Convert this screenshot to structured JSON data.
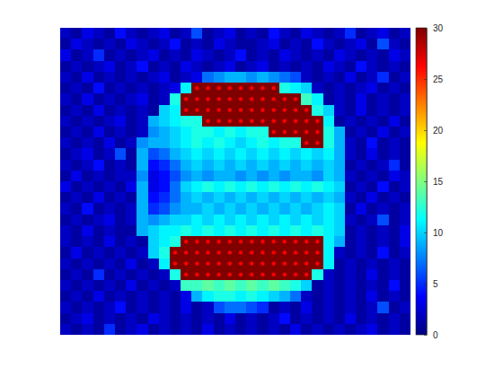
{
  "chart_data": {
    "type": "heatmap",
    "tick_labels": false,
    "xlim": [
      0.5,
      32.5
    ],
    "ylim": [
      0.5,
      28.5
    ],
    "x": [
      1,
      2,
      3,
      4,
      5,
      6,
      7,
      8,
      9,
      10,
      11,
      12,
      13,
      14,
      15,
      16,
      17,
      18,
      19,
      20,
      21,
      22,
      23,
      24,
      25,
      26,
      27,
      28,
      29,
      30,
      31,
      32
    ],
    "y": [
      1,
      2,
      3,
      4,
      5,
      6,
      7,
      8,
      9,
      10,
      11,
      12,
      13,
      14,
      15,
      16,
      17,
      18,
      19,
      20,
      21,
      22,
      23,
      24,
      25,
      26,
      27,
      28
    ],
    "z": [
      [
        2,
        1,
        3,
        2,
        1,
        4,
        2,
        1,
        2,
        3,
        1,
        2,
        6,
        1,
        2,
        3,
        1,
        2,
        1,
        4,
        2,
        1,
        3,
        2,
        1,
        2,
        5,
        1,
        2,
        3,
        1,
        2
      ],
      [
        1,
        3,
        2,
        1,
        2,
        1,
        3,
        2,
        1,
        2,
        4,
        1,
        2,
        1,
        3,
        2,
        1,
        1,
        2,
        3,
        1,
        2,
        1,
        4,
        2,
        1,
        2,
        3,
        1,
        6,
        2,
        1
      ],
      [
        3,
        1,
        2,
        5,
        1,
        2,
        1,
        2,
        3,
        1,
        2,
        1,
        3,
        2,
        1,
        2,
        4,
        1,
        2,
        1,
        3,
        2,
        1,
        2,
        1,
        3,
        2,
        1,
        2,
        1,
        3,
        2
      ],
      [
        1,
        2,
        1,
        2,
        3,
        1,
        2,
        4,
        1,
        2,
        1,
        3,
        2,
        1,
        2,
        3,
        1,
        2,
        3,
        1,
        2,
        1,
        2,
        1,
        3,
        2,
        1,
        4,
        2,
        1,
        2,
        1
      ],
      [
        2,
        1,
        3,
        1,
        2,
        1,
        2,
        1,
        2,
        3,
        1,
        2,
        3,
        7,
        8,
        9,
        9,
        8,
        9,
        8,
        7,
        6,
        2,
        1,
        2,
        1,
        3,
        1,
        2,
        5,
        1,
        2
      ],
      [
        1,
        2,
        1,
        4,
        1,
        2,
        1,
        2,
        1,
        2,
        3,
        11,
        30,
        30,
        30,
        30,
        30,
        30,
        30,
        30,
        12,
        11,
        10,
        2,
        1,
        2,
        1,
        2,
        3,
        1,
        2,
        1
      ],
      [
        2,
        1,
        3,
        1,
        2,
        1,
        2,
        3,
        1,
        2,
        12,
        30,
        30,
        30,
        30,
        30,
        30,
        30,
        30,
        30,
        30,
        30,
        13,
        11,
        1,
        2,
        1,
        3,
        1,
        2,
        1,
        2
      ],
      [
        1,
        2,
        1,
        3,
        1,
        2,
        1,
        2,
        1,
        10,
        11,
        30,
        30,
        30,
        30,
        30,
        30,
        30,
        30,
        30,
        30,
        30,
        30,
        12,
        10,
        2,
        1,
        3,
        1,
        2,
        1,
        2
      ],
      [
        2,
        1,
        2,
        1,
        2,
        3,
        1,
        2,
        9,
        10,
        11,
        12,
        12,
        30,
        30,
        30,
        30,
        30,
        30,
        30,
        30,
        30,
        30,
        30,
        11,
        1,
        2,
        1,
        2,
        1,
        3,
        1
      ],
      [
        1,
        2,
        1,
        3,
        1,
        2,
        1,
        2,
        8,
        9,
        10,
        11,
        12,
        12,
        11,
        12,
        11,
        12,
        12,
        30,
        30,
        30,
        30,
        30,
        12,
        9,
        1,
        2,
        1,
        3,
        1,
        2
      ],
      [
        2,
        1,
        2,
        1,
        3,
        1,
        2,
        8,
        9,
        9,
        10,
        11,
        12,
        11,
        12,
        11,
        10,
        11,
        12,
        11,
        12,
        12,
        30,
        30,
        12,
        9,
        2,
        1,
        4,
        1,
        2,
        1
      ],
      [
        1,
        2,
        3,
        1,
        2,
        6,
        1,
        9,
        6,
        7,
        9,
        10,
        11,
        10,
        11,
        10,
        11,
        10,
        11,
        10,
        11,
        10,
        11,
        10,
        11,
        9,
        2,
        1,
        3,
        1,
        2,
        1
      ],
      [
        2,
        1,
        2,
        4,
        1,
        2,
        1,
        9,
        4,
        5,
        7,
        9,
        10,
        9,
        10,
        9,
        10,
        9,
        10,
        9,
        10,
        9,
        10,
        9,
        10,
        9,
        1,
        2,
        1,
        2,
        5,
        1
      ],
      [
        1,
        3,
        1,
        2,
        1,
        2,
        2,
        8,
        3,
        4,
        6,
        8,
        9,
        8,
        9,
        9,
        8,
        9,
        8,
        9,
        8,
        9,
        9,
        8,
        10,
        9,
        2,
        1,
        2,
        1,
        3,
        2
      ],
      [
        3,
        1,
        2,
        1,
        2,
        1,
        3,
        9,
        3,
        4,
        7,
        10,
        11,
        12,
        11,
        12,
        11,
        12,
        11,
        12,
        11,
        12,
        11,
        12,
        11,
        10,
        1,
        2,
        1,
        4,
        1,
        2
      ],
      [
        1,
        2,
        1,
        3,
        1,
        2,
        1,
        9,
        4,
        5,
        7,
        9,
        10,
        9,
        10,
        9,
        10,
        9,
        10,
        9,
        10,
        9,
        10,
        9,
        10,
        9,
        2,
        1,
        3,
        1,
        2,
        1
      ],
      [
        2,
        1,
        4,
        1,
        2,
        1,
        2,
        9,
        5,
        6,
        8,
        9,
        9,
        10,
        9,
        10,
        9,
        10,
        9,
        10,
        9,
        10,
        9,
        10,
        11,
        10,
        1,
        3,
        1,
        2,
        1,
        2
      ],
      [
        1,
        2,
        1,
        2,
        3,
        1,
        2,
        9,
        8,
        9,
        10,
        10,
        11,
        10,
        11,
        10,
        11,
        10,
        11,
        10,
        11,
        10,
        11,
        10,
        11,
        10,
        2,
        1,
        2,
        6,
        1,
        2
      ],
      [
        2,
        1,
        3,
        1,
        2,
        1,
        1,
        9,
        10,
        11,
        11,
        12,
        11,
        12,
        11,
        12,
        11,
        12,
        11,
        12,
        11,
        12,
        11,
        12,
        11,
        10,
        1,
        2,
        1,
        2,
        1,
        3
      ],
      [
        2,
        1,
        2,
        1,
        3,
        1,
        2,
        1,
        10,
        11,
        12,
        30,
        30,
        30,
        30,
        30,
        30,
        30,
        30,
        30,
        30,
        30,
        30,
        30,
        11,
        9,
        1,
        2,
        1,
        2,
        1,
        3
      ],
      [
        1,
        3,
        1,
        2,
        1,
        2,
        1,
        2,
        10,
        12,
        30,
        30,
        30,
        30,
        30,
        30,
        30,
        30,
        30,
        30,
        30,
        30,
        30,
        30,
        11,
        2,
        1,
        2,
        1,
        4,
        1,
        2
      ],
      [
        2,
        1,
        2,
        1,
        2,
        1,
        3,
        1,
        2,
        11,
        30,
        30,
        30,
        30,
        30,
        30,
        30,
        30,
        30,
        30,
        30,
        30,
        30,
        30,
        11,
        1,
        2,
        1,
        2,
        1,
        2,
        1
      ],
      [
        1,
        2,
        1,
        5,
        1,
        2,
        1,
        2,
        1,
        2,
        12,
        30,
        30,
        30,
        30,
        30,
        30,
        30,
        30,
        30,
        30,
        30,
        30,
        12,
        2,
        1,
        2,
        1,
        3,
        1,
        2,
        1
      ],
      [
        2,
        1,
        2,
        1,
        2,
        1,
        3,
        1,
        2,
        1,
        2,
        13,
        13,
        14,
        13,
        14,
        13,
        14,
        13,
        14,
        13,
        12,
        10,
        1,
        2,
        1,
        2,
        1,
        2,
        1,
        4,
        1
      ],
      [
        1,
        2,
        1,
        3,
        1,
        2,
        1,
        2,
        1,
        2,
        1,
        3,
        9,
        11,
        12,
        12,
        11,
        12,
        11,
        10,
        9,
        7,
        2,
        1,
        2,
        1,
        2,
        1,
        3,
        1,
        2,
        1
      ],
      [
        2,
        1,
        2,
        1,
        2,
        4,
        1,
        2,
        1,
        2,
        1,
        3,
        1,
        2,
        6,
        7,
        7,
        6,
        5,
        1,
        2,
        1,
        3,
        1,
        2,
        1,
        2,
        1,
        2,
        6,
        1,
        2
      ],
      [
        1,
        2,
        3,
        1,
        2,
        1,
        2,
        1,
        3,
        2,
        1,
        2,
        1,
        2,
        1,
        3,
        1,
        2,
        1,
        2,
        4,
        1,
        2,
        1,
        2,
        1,
        3,
        1,
        2,
        1,
        2,
        1
      ],
      [
        2,
        1,
        2,
        1,
        5,
        1,
        2,
        3,
        1,
        2,
        1,
        2,
        1,
        3,
        1,
        2,
        1,
        2,
        1,
        2,
        1,
        3,
        1,
        2,
        1,
        2,
        1,
        2,
        3,
        1,
        2,
        1
      ]
    ],
    "colorbar": {
      "range": [
        0,
        30
      ],
      "ticks": [
        0,
        5,
        10,
        15,
        20,
        25,
        30
      ]
    },
    "series": [
      {
        "type": "scatter",
        "marker": "circle",
        "color": "#ff0000",
        "x": [
          13,
          14,
          15,
          16,
          17,
          18,
          19,
          20,
          12,
          13,
          14,
          15,
          16,
          17,
          18,
          19,
          20,
          21,
          22,
          12,
          13,
          14,
          15,
          16,
          17,
          18,
          19,
          20,
          21,
          22,
          23,
          14,
          15,
          16,
          17,
          18,
          19,
          20,
          21,
          22,
          23,
          24,
          20,
          21,
          22,
          23,
          24,
          23,
          24,
          12,
          13,
          14,
          15,
          16,
          17,
          18,
          19,
          20,
          21,
          22,
          23,
          24,
          11,
          12,
          13,
          14,
          15,
          16,
          17,
          18,
          19,
          20,
          21,
          22,
          23,
          24,
          11,
          12,
          13,
          14,
          15,
          16,
          17,
          18,
          19,
          20,
          21,
          22,
          23,
          24,
          12,
          13,
          14,
          15,
          16,
          17,
          18,
          19,
          20,
          21,
          22,
          23
        ],
        "y": [
          6,
          6,
          6,
          6,
          6,
          6,
          6,
          6,
          7,
          7,
          7,
          7,
          7,
          7,
          7,
          7,
          7,
          7,
          7,
          8,
          8,
          8,
          8,
          8,
          8,
          8,
          8,
          8,
          8,
          8,
          8,
          9,
          9,
          9,
          9,
          9,
          9,
          9,
          9,
          9,
          9,
          9,
          10,
          10,
          10,
          10,
          10,
          11,
          11,
          20,
          20,
          20,
          20,
          20,
          20,
          20,
          20,
          20,
          20,
          20,
          20,
          20,
          21,
          21,
          21,
          21,
          21,
          21,
          21,
          21,
          21,
          21,
          21,
          21,
          21,
          21,
          22,
          22,
          22,
          22,
          22,
          22,
          22,
          22,
          22,
          22,
          22,
          22,
          22,
          22,
          23,
          23,
          23,
          23,
          23,
          23,
          23,
          23,
          23,
          23,
          23,
          23
        ]
      }
    ]
  }
}
